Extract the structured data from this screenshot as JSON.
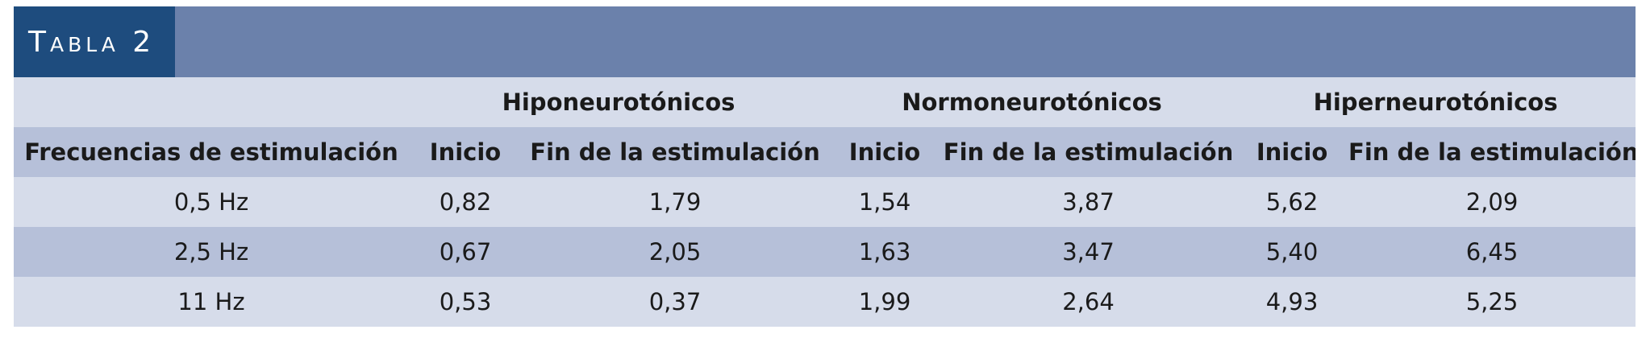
{
  "title": "Tabla 2",
  "group_headers": [
    "",
    "Hiponeurotónicos",
    "Normoneurotónicos",
    "Hiperneurotónicos"
  ],
  "column_headers": [
    "Frecuencias de estimulación",
    "Inicio",
    "Fin de la estimulación",
    "Inicio",
    "Fin de la estimulación",
    "Inicio",
    "Fin de la estimulación"
  ],
  "rows": [
    [
      "0,5 Hz",
      "0,82",
      "1,79",
      "1,54",
      "3,87",
      "5,62",
      "2,09"
    ],
    [
      "2,5 Hz",
      "0,67",
      "2,05",
      "1,63",
      "3,47",
      "5,40",
      "6,45"
    ],
    [
      "11 Hz",
      "0,53",
      "0,37",
      "1,99",
      "2,64",
      "4,93",
      "5,25"
    ]
  ],
  "colors": {
    "title_tab": "#1e4c7e",
    "title_bar": "#6b81ab",
    "row_light": "#d6dcea",
    "row_dark": "#b6c0d9"
  }
}
